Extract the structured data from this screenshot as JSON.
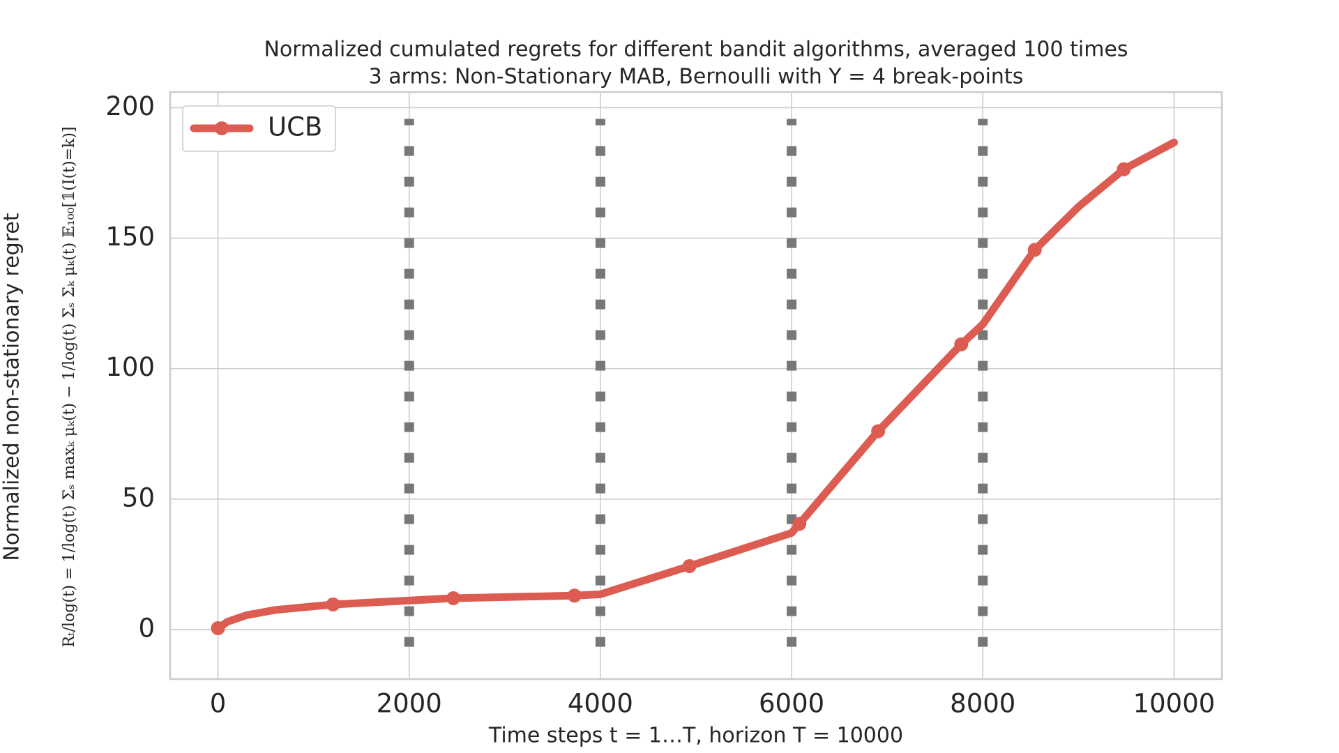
{
  "chart_data": {
    "type": "line",
    "title": "Normalized cumulated regrets for different bandit algorithms, averaged 100 times",
    "subtitle": "3 arms: Non-Stationary MAB, Bernoulli with Υ = 4 break-points",
    "x_label": "Time steps t = 1…T, horizon T = 10000",
    "y_label": [
      "Normalized non-stationary regret",
      "Rₜ/log(t) = 1/log(t) Σₛ maxₖ μₖ(t) − 1/log(t) Σₛ Σₖ μₖ(t) 𝔼₁₀₀[𝟙(I(t)=k)]"
    ],
    "x": [
      0,
      100,
      300,
      600,
      1204,
      2462,
      3729,
      4000,
      4932,
      6000,
      6081,
      6905,
      7774,
      8000,
      8543,
      9000,
      9475,
      10000
    ],
    "series": [
      {
        "name": "UCB",
        "color": "#dd5c52",
        "values": [
          0.5,
          3,
          5.5,
          7.5,
          9.6,
          12,
          13,
          13.5,
          24.3,
          37,
          40.5,
          76,
          109.3,
          117,
          145.5,
          162,
          176.4,
          186.7
        ],
        "markevery": [
          0,
          4,
          5,
          6,
          8,
          10,
          11,
          12,
          14,
          16
        ]
      }
    ],
    "vlines": {
      "x": [
        2000,
        4000,
        6000,
        8000
      ],
      "ymin": -6.6,
      "ymax": 195.7,
      "color": "#777777"
    },
    "xlim": [
      -500,
      10500
    ],
    "ylim": [
      -19,
      206
    ],
    "xticks": [
      0,
      2000,
      4000,
      6000,
      8000,
      10000
    ],
    "yticks": [
      0,
      50,
      100,
      150,
      200
    ],
    "grid": true,
    "legend": "upper left"
  }
}
